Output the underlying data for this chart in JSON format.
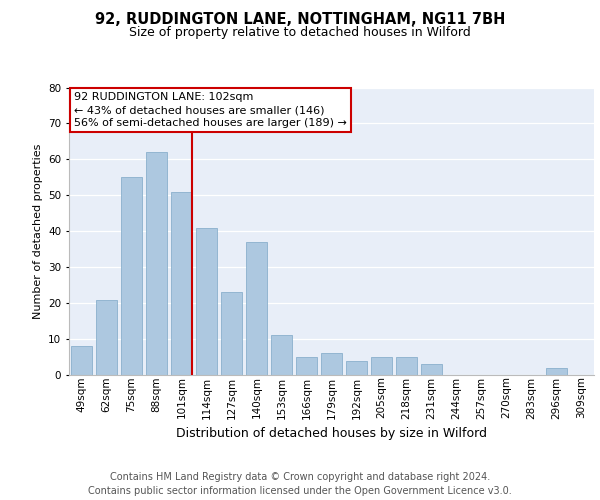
{
  "title1": "92, RUDDINGTON LANE, NOTTINGHAM, NG11 7BH",
  "title2": "Size of property relative to detached houses in Wilford",
  "xlabel": "Distribution of detached houses by size in Wilford",
  "ylabel": "Number of detached properties",
  "categories": [
    "49sqm",
    "62sqm",
    "75sqm",
    "88sqm",
    "101sqm",
    "114sqm",
    "127sqm",
    "140sqm",
    "153sqm",
    "166sqm",
    "179sqm",
    "192sqm",
    "205sqm",
    "218sqm",
    "231sqm",
    "244sqm",
    "257sqm",
    "270sqm",
    "283sqm",
    "296sqm",
    "309sqm"
  ],
  "values": [
    8,
    21,
    55,
    62,
    51,
    41,
    23,
    37,
    11,
    5,
    6,
    4,
    5,
    5,
    3,
    0,
    0,
    0,
    0,
    2,
    0
  ],
  "bar_color": "#adc8e0",
  "bar_edge_color": "#8ab0cc",
  "vline_color": "#cc0000",
  "annotation_line1": "92 RUDDINGTON LANE: 102sqm",
  "annotation_line2": "← 43% of detached houses are smaller (146)",
  "annotation_line3": "56% of semi-detached houses are larger (189) →",
  "annotation_box_color": "#ffffff",
  "annotation_box_edge": "#cc0000",
  "ylim": [
    0,
    80
  ],
  "yticks": [
    0,
    10,
    20,
    30,
    40,
    50,
    60,
    70,
    80
  ],
  "bg_color": "#e8eef8",
  "grid_color": "#ffffff",
  "footer_line1": "Contains HM Land Registry data © Crown copyright and database right 2024.",
  "footer_line2": "Contains public sector information licensed under the Open Government Licence v3.0.",
  "title1_fontsize": 10.5,
  "title2_fontsize": 9,
  "ylabel_fontsize": 8,
  "xlabel_fontsize": 9,
  "tick_fontsize": 7.5,
  "annotation_fontsize": 8,
  "footer_fontsize": 7
}
